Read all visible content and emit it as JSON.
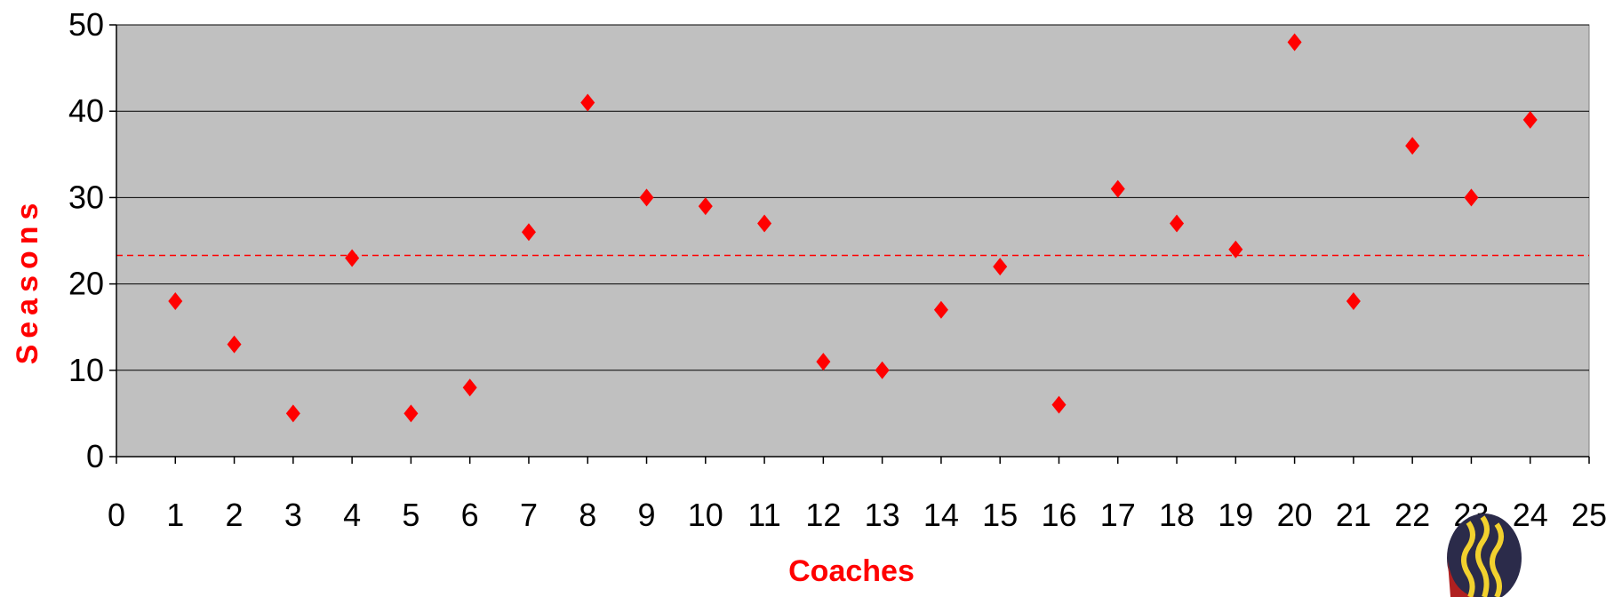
{
  "colors": {
    "plot_background": "#c0c0c0",
    "marker": "#ff0000",
    "reference_line": "#ff0000",
    "grid": "#000000"
  },
  "logo": {
    "icon": "flame-logo-icon"
  },
  "chart_data": {
    "type": "scatter",
    "title": "",
    "xlabel": "Coaches",
    "ylabel": "Seasons",
    "xlim": [
      0,
      25
    ],
    "ylim": [
      0,
      50
    ],
    "xticks": [
      0,
      1,
      2,
      3,
      4,
      5,
      6,
      7,
      8,
      9,
      10,
      11,
      12,
      13,
      14,
      15,
      16,
      17,
      18,
      19,
      20,
      21,
      22,
      23,
      24,
      25
    ],
    "yticks": [
      0,
      10,
      20,
      30,
      40,
      50
    ],
    "grid": "horizontal",
    "marker": "diamond",
    "reference_line": {
      "y": 23.3,
      "style": "dashed"
    },
    "series": [
      {
        "x": [
          1,
          2,
          3,
          4,
          5,
          6,
          7,
          8,
          9,
          10,
          11,
          12,
          13,
          14,
          15,
          16,
          17,
          18,
          19,
          20,
          21,
          22,
          23,
          24
        ],
        "y": [
          18,
          13,
          5,
          23,
          5,
          8,
          26,
          41,
          30,
          29,
          27,
          11,
          10,
          17,
          22,
          6,
          31,
          27,
          24,
          48,
          18,
          36,
          30,
          39
        ]
      }
    ]
  }
}
